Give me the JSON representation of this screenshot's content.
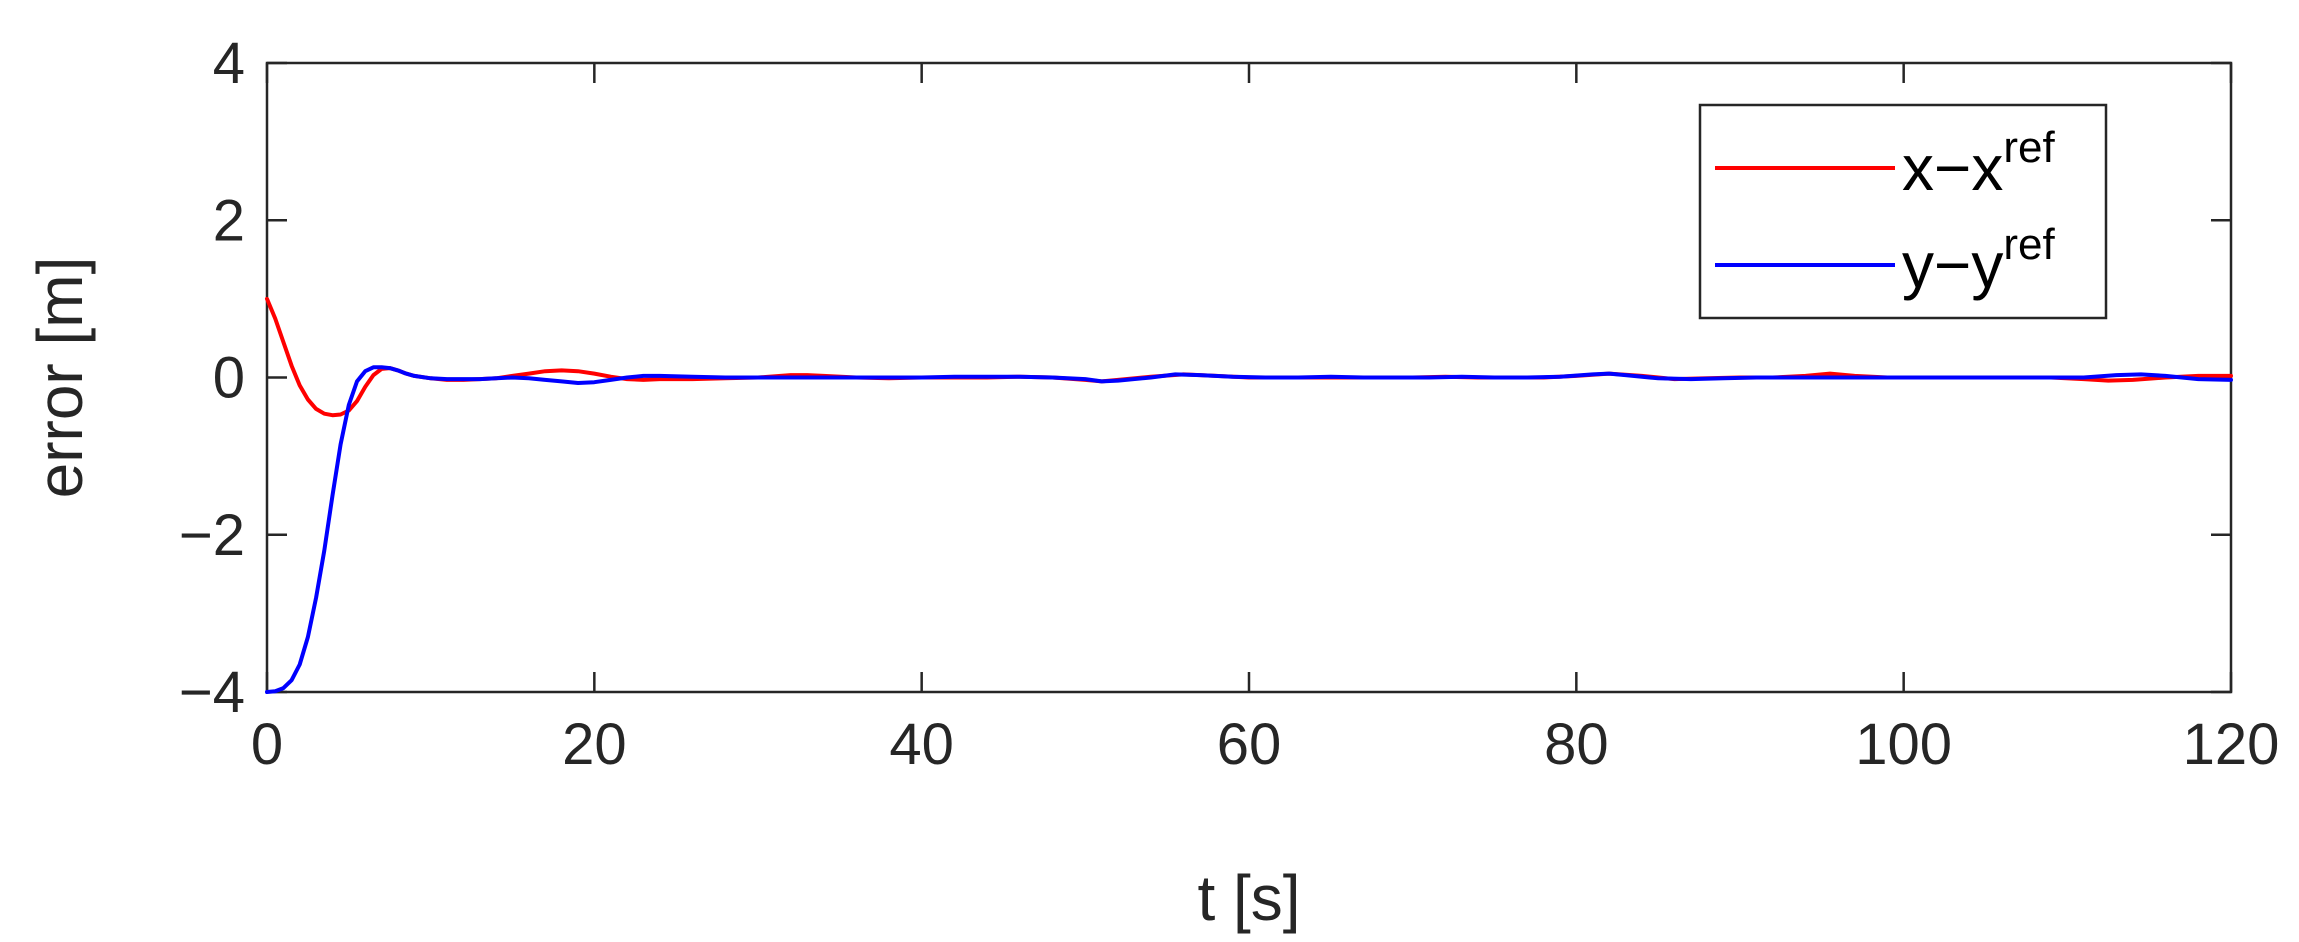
{
  "chart_data": {
    "type": "line",
    "title": "",
    "xlabel": "t [s]",
    "ylabel": "error [m]",
    "xlim": [
      0,
      120
    ],
    "ylim": [
      -4,
      4
    ],
    "xticks": [
      0,
      20,
      40,
      60,
      80,
      100,
      120
    ],
    "xtick_labels": [
      "0",
      "20",
      "40",
      "60",
      "80",
      "100",
      "120"
    ],
    "yticks": [
      -4,
      -2,
      0,
      2,
      4
    ],
    "ytick_labels": [
      "−4",
      "−2",
      "0",
      "2",
      "4"
    ],
    "grid": false,
    "legend_position": "top-right",
    "series": [
      {
        "legend_base": "x−x",
        "legend_sup": "ref",
        "color": "#ff0000",
        "x": [
          0,
          0.5,
          1,
          1.5,
          2,
          2.5,
          3,
          3.5,
          4,
          4.5,
          5,
          5.5,
          6,
          6.5,
          7,
          7.5,
          8,
          8.5,
          9,
          10,
          11,
          12,
          13,
          14,
          15,
          16,
          17,
          18,
          19,
          20,
          21,
          22,
          23,
          24,
          26,
          28,
          30,
          32,
          33,
          34,
          36,
          38,
          40,
          42,
          44,
          46,
          48,
          50,
          51,
          52,
          54,
          56,
          58,
          60,
          62,
          64,
          66,
          68,
          70,
          72,
          74,
          76,
          78,
          80,
          82,
          84,
          86,
          88,
          90,
          92,
          94,
          95.5,
          97,
          99,
          101,
          103,
          105,
          107,
          109,
          111,
          112.5,
          114,
          116,
          118,
          120
        ],
        "y": [
          1.0,
          0.75,
          0.45,
          0.15,
          -0.1,
          -0.28,
          -0.4,
          -0.46,
          -0.48,
          -0.47,
          -0.42,
          -0.3,
          -0.12,
          0.03,
          0.11,
          0.12,
          0.09,
          0.05,
          0.02,
          -0.01,
          -0.03,
          -0.03,
          -0.02,
          -0.01,
          0.02,
          0.05,
          0.08,
          0.09,
          0.08,
          0.05,
          0.01,
          -0.02,
          -0.03,
          -0.02,
          -0.02,
          -0.01,
          0.0,
          0.03,
          0.03,
          0.02,
          0.0,
          -0.01,
          0.0,
          0.0,
          0.0,
          0.01,
          0.0,
          -0.03,
          -0.05,
          -0.03,
          0.01,
          0.04,
          0.02,
          0.0,
          0.0,
          0.0,
          0.0,
          0.0,
          0.0,
          0.01,
          0.0,
          0.0,
          0.0,
          0.02,
          0.05,
          0.02,
          -0.02,
          -0.01,
          0.0,
          0.0,
          0.02,
          0.05,
          0.02,
          0.0,
          0.0,
          0.0,
          0.0,
          0.0,
          0.0,
          -0.02,
          -0.04,
          -0.03,
          0.0,
          0.02,
          0.02
        ]
      },
      {
        "legend_base": "y−y",
        "legend_sup": "ref",
        "color": "#0000ff",
        "x": [
          0,
          0.5,
          1,
          1.5,
          2,
          2.5,
          3,
          3.5,
          4,
          4.5,
          5,
          5.5,
          6,
          6.5,
          7,
          7.5,
          8,
          8.5,
          9,
          10,
          11,
          12,
          13,
          14,
          15,
          16,
          17,
          18,
          19,
          20,
          21,
          22,
          23,
          24,
          26,
          28,
          30,
          32,
          34,
          36,
          38,
          40,
          42,
          44,
          46,
          48,
          50,
          51,
          52,
          54,
          55.5,
          57,
          59,
          61,
          63,
          65,
          67,
          69,
          71,
          73,
          75,
          77,
          79,
          81,
          82,
          83,
          85,
          87,
          89,
          91,
          93,
          95,
          97,
          99,
          101,
          103,
          105,
          107,
          109,
          111,
          113,
          114.5,
          116,
          118,
          120
        ],
        "y": [
          -4.0,
          -3.99,
          -3.95,
          -3.85,
          -3.65,
          -3.3,
          -2.8,
          -2.2,
          -1.5,
          -0.85,
          -0.35,
          -0.05,
          0.08,
          0.13,
          0.13,
          0.12,
          0.09,
          0.05,
          0.02,
          -0.01,
          -0.02,
          -0.02,
          -0.02,
          -0.01,
          0.0,
          -0.01,
          -0.03,
          -0.05,
          -0.07,
          -0.06,
          -0.03,
          0.0,
          0.02,
          0.02,
          0.01,
          0.0,
          0.0,
          0.0,
          0.0,
          0.0,
          0.0,
          0.0,
          0.01,
          0.01,
          0.01,
          0.0,
          -0.02,
          -0.05,
          -0.04,
          0.0,
          0.04,
          0.03,
          0.01,
          0.0,
          0.0,
          0.01,
          0.0,
          0.0,
          0.0,
          0.01,
          0.0,
          0.0,
          0.01,
          0.04,
          0.05,
          0.03,
          -0.01,
          -0.02,
          -0.01,
          0.0,
          0.0,
          0.0,
          0.0,
          0.0,
          0.0,
          0.0,
          0.0,
          0.0,
          0.0,
          0.0,
          0.03,
          0.04,
          0.02,
          -0.02,
          -0.03
        ]
      }
    ]
  }
}
